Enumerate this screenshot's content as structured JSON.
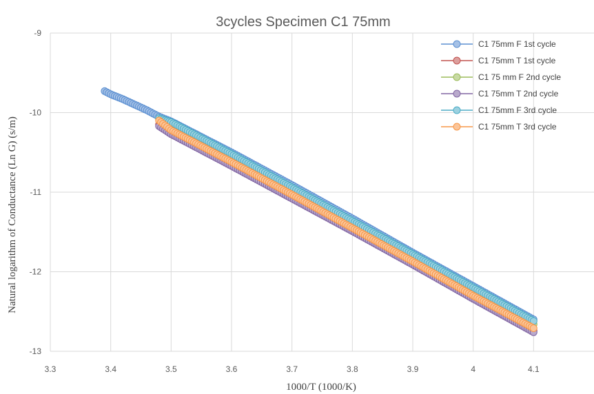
{
  "chart_data": {
    "type": "scatter",
    "title": "3cycles Specimen C1 75mm",
    "xlabel": "1000/T  (1000/K)",
    "ylabel": "Natural logarithm  of Conductance (Ln G)  (s/m)",
    "xlim": [
      3.3,
      4.2
    ],
    "ylim": [
      -13,
      -9
    ],
    "x_ticks": [
      "3.3",
      "3.4",
      "3.5",
      "3.6",
      "3.7",
      "3.8",
      "3.9",
      "4",
      "4.1"
    ],
    "y_ticks": [
      "-9",
      "-10",
      "-11",
      "-12",
      "-13"
    ],
    "grid": "vertical and horizontal",
    "legend_position": "top-right",
    "series": [
      {
        "name": "C1 75mm F 1st cycle",
        "color": "#5b8fd1",
        "x": [
          3.39,
          3.4,
          3.42,
          3.44,
          3.46,
          3.48,
          3.5,
          3.6,
          3.7,
          3.8,
          3.9,
          4.0,
          4.1
        ],
        "y": [
          -9.73,
          -9.77,
          -9.83,
          -9.9,
          -9.97,
          -10.05,
          -10.11,
          -10.5,
          -10.91,
          -11.33,
          -11.76,
          -12.18,
          -12.6
        ]
      },
      {
        "name": "C1 75mm T 1st cycle",
        "color": "#c0504d",
        "x": [
          3.48,
          3.5,
          3.6,
          3.7,
          3.8,
          3.9,
          4.0,
          4.1
        ],
        "y": [
          -10.15,
          -10.25,
          -10.65,
          -11.06,
          -11.47,
          -11.89,
          -12.32,
          -12.74
        ]
      },
      {
        "name": "C1 75 mm F 2nd cycle",
        "color": "#9bbb59",
        "x": [
          3.48,
          3.5,
          3.6,
          3.7,
          3.8,
          3.9,
          4.0,
          4.1
        ],
        "y": [
          -10.08,
          -10.15,
          -10.56,
          -10.98,
          -11.4,
          -11.82,
          -12.25,
          -12.66
        ]
      },
      {
        "name": "C1 75mm T 2nd cycle",
        "color": "#8064a2",
        "x": [
          3.48,
          3.5,
          3.6,
          3.7,
          3.8,
          3.9,
          4.0,
          4.1
        ],
        "y": [
          -10.17,
          -10.27,
          -10.67,
          -11.08,
          -11.49,
          -11.91,
          -12.34,
          -12.76
        ]
      },
      {
        "name": "C1 75mm F 3rd cycle",
        "color": "#4bacc6",
        "x": [
          3.48,
          3.5,
          3.6,
          3.7,
          3.8,
          3.9,
          4.0,
          4.1
        ],
        "y": [
          -10.07,
          -10.12,
          -10.52,
          -10.94,
          -11.36,
          -11.78,
          -12.2,
          -12.62
        ]
      },
      {
        "name": "C1 75mm T 3rd cycle",
        "color": "#f79646",
        "x": [
          3.48,
          3.5,
          3.6,
          3.7,
          3.8,
          3.9,
          4.0,
          4.1
        ],
        "y": [
          -10.1,
          -10.22,
          -10.62,
          -11.03,
          -11.45,
          -11.87,
          -12.3,
          -12.71
        ]
      }
    ]
  }
}
